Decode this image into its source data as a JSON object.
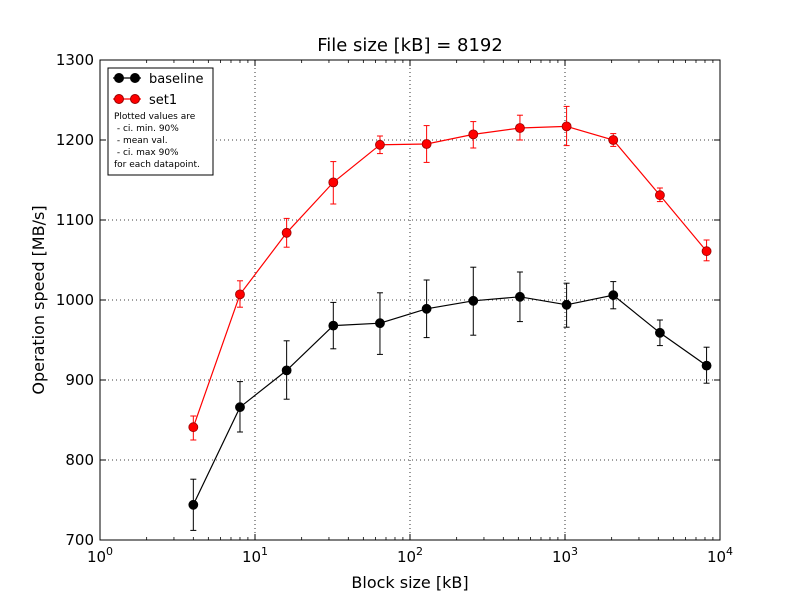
{
  "chart_data": {
    "type": "line",
    "title": "File size [kB] = 8192",
    "xlabel": "Block size [kB]",
    "ylabel": "Operation speed [MB/s]",
    "x_scale": "log",
    "xlim": [
      1,
      10000
    ],
    "ylim": [
      700,
      1300
    ],
    "grid": true,
    "legend_position": "top-left",
    "x_ticks": [
      {
        "value": 1,
        "base": "10",
        "exp": "0"
      },
      {
        "value": 10,
        "base": "10",
        "exp": "1"
      },
      {
        "value": 100,
        "base": "10",
        "exp": "2"
      },
      {
        "value": 1000,
        "base": "10",
        "exp": "3"
      },
      {
        "value": 10000,
        "base": "10",
        "exp": "4"
      }
    ],
    "y_ticks": [
      700,
      800,
      900,
      1000,
      1100,
      1200,
      1300
    ],
    "x": [
      4,
      8,
      16,
      32,
      64,
      128,
      256,
      512,
      1024,
      2048,
      4096,
      8192
    ],
    "series": [
      {
        "name": "baseline",
        "color": "#000000",
        "values": [
          744,
          866,
          912,
          968,
          971,
          989,
          999,
          1004,
          994,
          1006,
          959,
          918
        ],
        "ci_min": [
          712,
          835,
          876,
          939,
          932,
          953,
          956,
          973,
          966,
          989,
          943,
          896
        ],
        "ci_max": [
          776,
          898,
          949,
          997,
          1009,
          1025,
          1041,
          1035,
          1021,
          1023,
          975,
          941
        ]
      },
      {
        "name": "set1",
        "color": "#ff0000",
        "values": [
          841,
          1007,
          1084,
          1147,
          1194,
          1195,
          1207,
          1215,
          1217,
          1200,
          1131,
          1061
        ],
        "ci_min": [
          825,
          991,
          1066,
          1120,
          1183,
          1172,
          1190,
          1200,
          1193,
          1192,
          1123,
          1049
        ],
        "ci_max": [
          855,
          1024,
          1102,
          1173,
          1205,
          1218,
          1223,
          1231,
          1242,
          1208,
          1140,
          1075
        ]
      }
    ],
    "legend_note": [
      "Plotted values are",
      " - ci. min. 90%",
      " - mean val.",
      " - ci. max 90%",
      "for each datapoint."
    ]
  }
}
